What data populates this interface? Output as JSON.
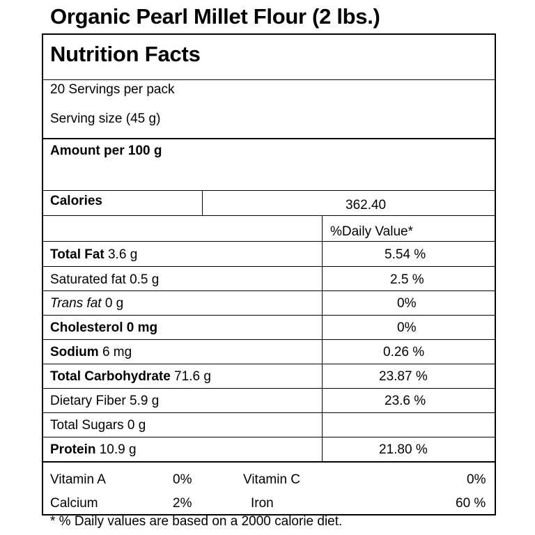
{
  "title": "Organic Pearl Millet Flour (2 lbs.)",
  "heading": "Nutrition Facts",
  "servings": "20  Servings per pack",
  "serving_size": "Serving size  (45 g)",
  "amount_per": "Amount per 100 g",
  "calories": {
    "label": "Calories",
    "value": "362.40"
  },
  "dv_header": "%Daily Value*",
  "nutrients": [
    {
      "name": "Total Fat",
      "amount": " 3.6  g",
      "dv": "5.54 %"
    },
    {
      "name": "Saturated fat",
      "amount": " 0.5  g",
      "dv": "2.5 %"
    },
    {
      "name": "Trans fat",
      "amount": "  0 g",
      "dv": "0%"
    },
    {
      "name": "Cholesterol  0 mg",
      "amount": "",
      "dv": "0%"
    },
    {
      "name": "Sodium",
      "amount": "  6 mg",
      "dv": "0.26  %"
    },
    {
      "name": "Total Carbohydrate",
      "amount": " 71.6  g",
      "dv": "23.87 %"
    },
    {
      "name": "Dietary Fiber",
      "amount": "  5.9  g",
      "dv": "23.6 %"
    },
    {
      "name": "Total Sugars",
      "amount": " 0 g",
      "dv": ""
    },
    {
      "name": "Protein",
      "amount": "  10.9  g",
      "dv": "21.80 %"
    }
  ],
  "vitamins": {
    "vitamin_a": {
      "label": "Vitamin A",
      "value": "0%"
    },
    "vitamin_c": {
      "label": "Vitamin C",
      "value": "0%"
    },
    "calcium": {
      "label": "Calcium",
      "value": "2%"
    },
    "iron": {
      "label": "Iron",
      "value": "60 %"
    }
  },
  "footnote": "* % Daily values are based on a 2000 calorie diet."
}
